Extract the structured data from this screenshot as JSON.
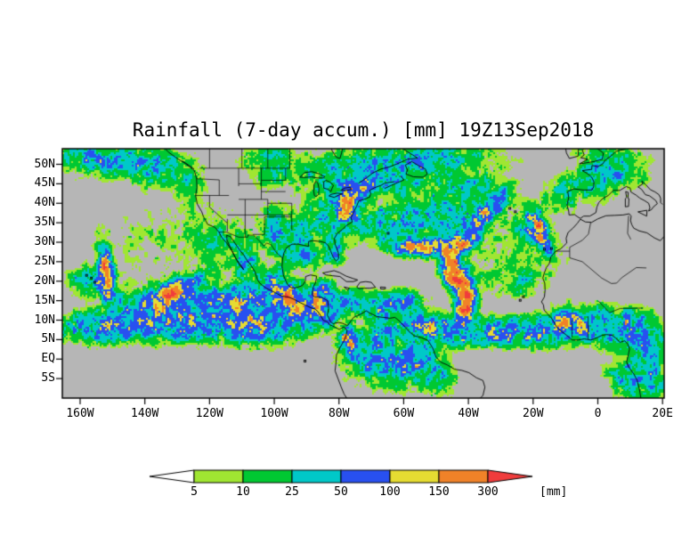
{
  "title": "Rainfall (7-day accum.) [mm] 19Z13Sep2018",
  "map": {
    "extent": {
      "lon_min": -165.5,
      "lon_max": 20.5,
      "lat_min": -10,
      "lat_max": 54
    },
    "background_color": "#b6b6b6",
    "coastline_color": "#000000"
  },
  "axes": {
    "lat_ticks": [
      {
        "label": "50N",
        "deg": 50
      },
      {
        "label": "45N",
        "deg": 45
      },
      {
        "label": "40N",
        "deg": 40
      },
      {
        "label": "35N",
        "deg": 35
      },
      {
        "label": "30N",
        "deg": 30
      },
      {
        "label": "25N",
        "deg": 25
      },
      {
        "label": "20N",
        "deg": 20
      },
      {
        "label": "15N",
        "deg": 15
      },
      {
        "label": "10N",
        "deg": 10
      },
      {
        "label": "5N",
        "deg": 5
      },
      {
        "label": "EQ",
        "deg": 0
      },
      {
        "label": "5S",
        "deg": -5
      }
    ],
    "lon_ticks": [
      {
        "label": "160W",
        "deg": -160
      },
      {
        "label": "140W",
        "deg": -140
      },
      {
        "label": "120W",
        "deg": -120
      },
      {
        "label": "100W",
        "deg": -100
      },
      {
        "label": "80W",
        "deg": -80
      },
      {
        "label": "60W",
        "deg": -60
      },
      {
        "label": "40W",
        "deg": -40
      },
      {
        "label": "20W",
        "deg": -20
      },
      {
        "label": "0",
        "deg": 0
      },
      {
        "label": "20E",
        "deg": 20
      }
    ]
  },
  "colorbar": {
    "levels": [
      "5",
      "10",
      "25",
      "50",
      "100",
      "150",
      "300"
    ],
    "units": "[mm]",
    "colors": [
      "#ffffff",
      "#a0e632",
      "#00c832",
      "#00c8c8",
      "#2850f0",
      "#e6dc32",
      "#f08228",
      "#f03c3c"
    ]
  },
  "chart_data": {
    "type": "heatmap",
    "quantity": "Rainfall (7-day accum.)",
    "units": "mm",
    "valid_time": "19Z13Sep2018",
    "levels_mm": [
      5,
      10,
      25,
      50,
      100,
      150,
      300
    ],
    "palette": [
      "#ffffff",
      "#a0e632",
      "#00c832",
      "#00c8c8",
      "#2850f0",
      "#e6dc32",
      "#f08228",
      "#f03c3c"
    ],
    "extent": {
      "lon_min": -165.5,
      "lon_max": 20.5,
      "lat_min": -10,
      "lat_max": 54
    },
    "region_encoding": "[lon_deg, lat_deg, sigma_lon_deg, sigma_lat_deg, rotation_deg, peak_mm]",
    "rain_regions": [
      [
        -152,
        8,
        14,
        3.2,
        0,
        120
      ],
      [
        -128,
        9,
        16,
        3.6,
        0,
        130
      ],
      [
        -104,
        9,
        10,
        4,
        0,
        150
      ],
      [
        -152,
        22,
        1.8,
        5.5,
        8,
        400
      ],
      [
        -157,
        20,
        5,
        3,
        0,
        90
      ],
      [
        -131,
        17,
        8,
        2.2,
        22,
        330
      ],
      [
        -122,
        14,
        10,
        4,
        0,
        110
      ],
      [
        -140,
        14,
        10,
        4,
        0,
        70
      ],
      [
        -110,
        15,
        6,
        4,
        0,
        120
      ],
      [
        -150,
        51,
        12,
        3.5,
        0,
        80
      ],
      [
        -136,
        49,
        6,
        4,
        0,
        80
      ],
      [
        -126,
        45,
        3.5,
        5,
        0,
        55
      ],
      [
        -160,
        53,
        6,
        2.5,
        0,
        60
      ],
      [
        -130,
        30,
        22,
        9,
        0,
        15
      ],
      [
        -117,
        30,
        8,
        6,
        0,
        20
      ],
      [
        -100,
        18,
        5,
        4,
        0,
        140
      ],
      [
        -93,
        14.5,
        5,
        3.5,
        0,
        190
      ],
      [
        -87,
        12,
        5,
        3.5,
        0,
        170
      ],
      [
        -96,
        16.5,
        1.8,
        1.8,
        0,
        260
      ],
      [
        -109,
        25,
        3,
        4.5,
        0,
        85
      ],
      [
        -85,
        17.5,
        3.5,
        2.5,
        0,
        110
      ],
      [
        -76,
        14.5,
        7,
        3,
        0,
        85
      ],
      [
        -66,
        13,
        5,
        2.5,
        0,
        95
      ],
      [
        -60,
        15,
        5,
        2.2,
        0,
        110
      ],
      [
        -77,
        5.5,
        2.2,
        2.8,
        0,
        280
      ],
      [
        -71,
        1,
        7,
        5,
        0,
        100
      ],
      [
        -61,
        -2,
        7,
        4.5,
        0,
        90
      ],
      [
        -54,
        0,
        5,
        4,
        0,
        85
      ],
      [
        -49,
        -5,
        4,
        3.5,
        0,
        75
      ],
      [
        -66,
        7,
        4,
        3,
        0,
        80
      ],
      [
        -48,
        7,
        9,
        3,
        0,
        115
      ],
      [
        -33,
        7,
        10,
        3,
        0,
        120
      ],
      [
        -18,
        7,
        8,
        3.2,
        0,
        115
      ],
      [
        -55,
        9,
        5,
        3,
        0,
        100
      ],
      [
        -25,
        20,
        6,
        3,
        0,
        40
      ],
      [
        -41,
        15.5,
        2.4,
        4.5,
        8,
        600
      ],
      [
        -44.5,
        22.5,
        2.4,
        4.5,
        30,
        520
      ],
      [
        -52,
        28.5,
        8,
        1.7,
        0,
        380
      ],
      [
        -41,
        30.5,
        4,
        1.6,
        25,
        280
      ],
      [
        -35,
        37.5,
        7,
        2.2,
        38,
        190
      ],
      [
        -45,
        37,
        12,
        5,
        0,
        55
      ],
      [
        -40,
        45,
        10,
        4,
        0,
        50
      ],
      [
        -56,
        35,
        8,
        4,
        0,
        60
      ],
      [
        -63,
        31,
        6,
        3,
        0,
        55
      ],
      [
        -68,
        36,
        6,
        2,
        30,
        90
      ],
      [
        -77,
        39.5,
        2.8,
        3.5,
        0,
        260
      ],
      [
        -80,
        38,
        7,
        6,
        0,
        55
      ],
      [
        -87,
        34,
        7,
        5,
        0,
        45
      ],
      [
        -95,
        30,
        5,
        4,
        0,
        55
      ],
      [
        -100,
        34,
        3.5,
        5,
        0,
        60
      ],
      [
        -81,
        27,
        2.5,
        2.5,
        0,
        90
      ],
      [
        -90,
        26.5,
        5,
        3,
        0,
        60
      ],
      [
        -73,
        44,
        4,
        3,
        0,
        120
      ],
      [
        -84,
        47.5,
        9,
        4,
        0,
        55
      ],
      [
        -68,
        47,
        5,
        3.5,
        0,
        70
      ],
      [
        -60,
        45,
        5,
        3,
        0,
        60
      ],
      [
        -55,
        50,
        8,
        3.5,
        0,
        65
      ],
      [
        -102,
        52,
        8,
        3,
        0,
        45
      ],
      [
        -100,
        47,
        6,
        3,
        0,
        35
      ],
      [
        -45,
        52,
        15,
        3,
        0,
        45
      ],
      [
        -70,
        52,
        10,
        3,
        0,
        40
      ],
      [
        -5,
        9,
        8,
        3.5,
        0,
        130
      ],
      [
        8,
        8,
        8,
        4,
        0,
        115
      ],
      [
        -11,
        9.5,
        3,
        2.5,
        0,
        260
      ],
      [
        16,
        3,
        5,
        5,
        0,
        95
      ],
      [
        9,
        -4,
        5,
        4,
        0,
        85
      ],
      [
        17,
        -7,
        5,
        4,
        0,
        75
      ],
      [
        -18,
        32.5,
        2,
        4.5,
        28,
        330
      ],
      [
        -21,
        33,
        6,
        5,
        0,
        55
      ],
      [
        -2,
        45,
        6,
        4,
        0,
        55
      ],
      [
        8,
        48,
        7,
        4,
        0,
        50
      ],
      [
        -12,
        42,
        5,
        4,
        0,
        45
      ],
      [
        3,
        52,
        8,
        3,
        0,
        45
      ],
      [
        -30,
        25,
        20,
        7,
        0,
        16
      ]
    ]
  }
}
